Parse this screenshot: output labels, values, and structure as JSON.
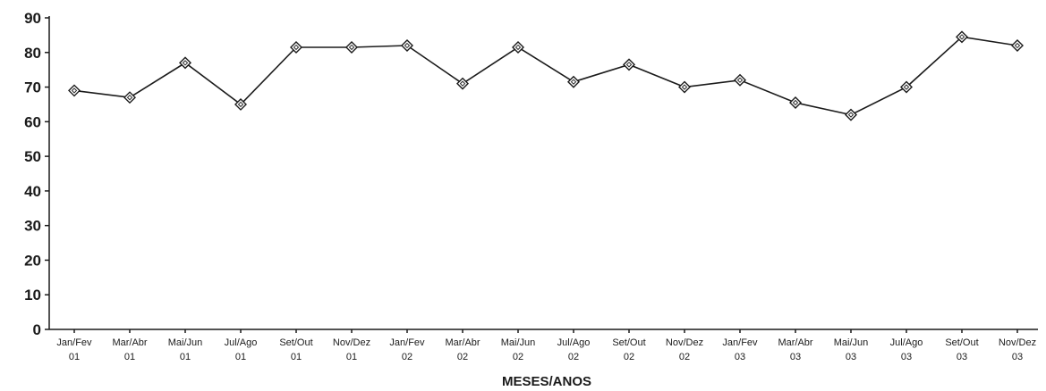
{
  "chart_data": {
    "type": "line",
    "title": "",
    "xlabel": "MESES/ANOS",
    "ylabel": "",
    "ylim": [
      0,
      90
    ],
    "yticks": [
      0,
      10,
      20,
      30,
      40,
      50,
      60,
      70,
      80,
      90
    ],
    "grid": false,
    "categories": [
      [
        "Jan/Fev",
        "01"
      ],
      [
        "Mar/Abr",
        "01"
      ],
      [
        "Mai/Jun",
        "01"
      ],
      [
        "Jul/Ago",
        "01"
      ],
      [
        "Set/Out",
        "01"
      ],
      [
        "Nov/Dez",
        "01"
      ],
      [
        "Jan/Fev",
        "02"
      ],
      [
        "Mar/Abr",
        "02"
      ],
      [
        "Mai/Jun",
        "02"
      ],
      [
        "Jul/Ago",
        "02"
      ],
      [
        "Set/Out",
        "02"
      ],
      [
        "Nov/Dez",
        "02"
      ],
      [
        "Jan/Fev",
        "03"
      ],
      [
        "Mar/Abr",
        "03"
      ],
      [
        "Mai/Jun",
        "03"
      ],
      [
        "Jul/Ago",
        "03"
      ],
      [
        "Set/Out",
        "03"
      ],
      [
        "Nov/Dez",
        "03"
      ]
    ],
    "series": [
      {
        "values": [
          69,
          67,
          77,
          65,
          81.5,
          81.5,
          82,
          71,
          81.5,
          71.5,
          76.5,
          70,
          72,
          65.5,
          62,
          70,
          84.5,
          82
        ],
        "color": "#1a1a1a",
        "marker": "diamond-open"
      }
    ]
  }
}
